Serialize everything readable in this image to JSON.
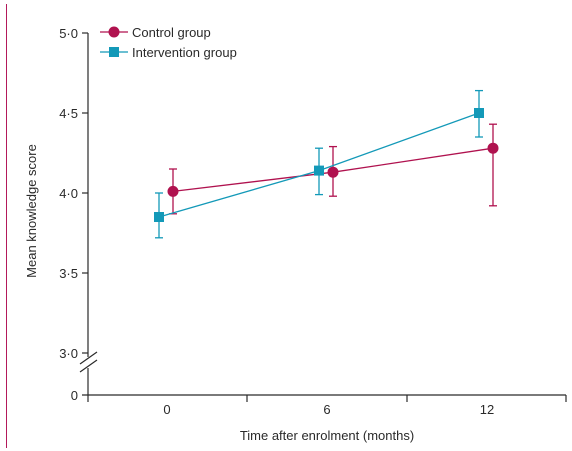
{
  "chart_data": {
    "type": "line",
    "xlabel": "Time after enrolment (months)",
    "ylabel": "Mean knowledge score",
    "x_categories": [
      "0",
      "6",
      "12"
    ],
    "y_ticks": [
      {
        "value": 3.0,
        "label": "3·0"
      },
      {
        "value": 3.5,
        "label": "3·5"
      },
      {
        "value": 4.0,
        "label": "4·0"
      },
      {
        "value": 4.5,
        "label": "4·5"
      },
      {
        "value": 5.0,
        "label": "5·0"
      }
    ],
    "y_zero_label": "0",
    "ylim": [
      3.0,
      5.0
    ],
    "axis_break": true,
    "legend": "top-left",
    "grid": false,
    "series": [
      {
        "name": "Control group",
        "color": "#b0124f",
        "marker": "circle",
        "values": [
          4.01,
          4.13,
          4.28
        ],
        "ci_low": [
          3.87,
          3.98,
          3.92
        ],
        "ci_high": [
          4.15,
          4.29,
          4.43
        ]
      },
      {
        "name": "Intervention group",
        "color": "#1399b8",
        "marker": "square",
        "values": [
          3.85,
          4.14,
          4.5
        ],
        "ci_low": [
          3.72,
          3.99,
          4.35
        ],
        "ci_high": [
          4.0,
          4.28,
          4.64
        ]
      }
    ]
  }
}
